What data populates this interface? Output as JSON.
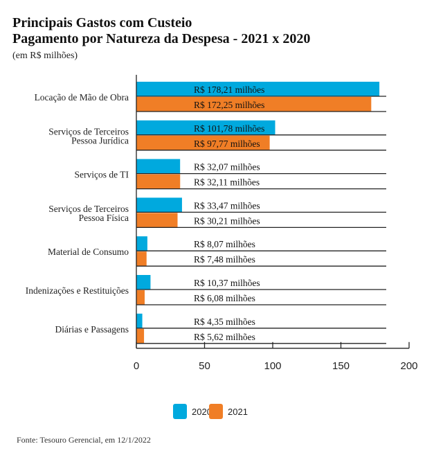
{
  "title": "Principais Gastos com Custeio",
  "subtitle": "Pagamento por Natureza da Despesa - 2021 x 2020",
  "unit_note": "(em R$ milhões)",
  "source": "Fonte: Tesouro Gerencial, em 12/1/2022",
  "chart_data": {
    "type": "bar",
    "orientation": "horizontal",
    "categories": [
      [
        "Locação de Mão de Obra"
      ],
      [
        "Serviços de Terceiros",
        "Pessoa  Jurídica"
      ],
      [
        "Serviços de TI"
      ],
      [
        "Serviços de Terceiros",
        "Pessoa Física"
      ],
      [
        "Material de Consumo"
      ],
      [
        "Indenizações e Restituições"
      ],
      [
        "Diárias e Passagens"
      ]
    ],
    "series": [
      {
        "name": "2020",
        "color": "#00a9de",
        "values": [
          178.21,
          101.78,
          32.07,
          33.47,
          8.07,
          10.37,
          4.35
        ],
        "labels": [
          "R$ 178,21 milhões",
          "R$ 101,78 milhões",
          "R$ 32,07 milhões",
          "R$ 33,47 milhões",
          "R$ 8,07 milhões",
          "R$ 10,37 milhões",
          "R$ 4,35 milhões"
        ]
      },
      {
        "name": "2021",
        "color": "#f07e26",
        "values": [
          172.25,
          97.77,
          32.11,
          30.21,
          7.48,
          6.08,
          5.62
        ],
        "labels": [
          "R$ 172,25 milhões",
          "R$ 97,77 milhões",
          "R$ 32,11 milhões",
          "R$ 30,21 milhões",
          "R$ 7,48 milhões",
          "R$ 6,08 milhões",
          "R$ 5,62 milhões"
        ]
      }
    ],
    "xlim": [
      0,
      200
    ],
    "xticks": [
      "0",
      "50",
      "100",
      "150",
      "200"
    ],
    "legend": "bottom-center",
    "grid": false
  }
}
